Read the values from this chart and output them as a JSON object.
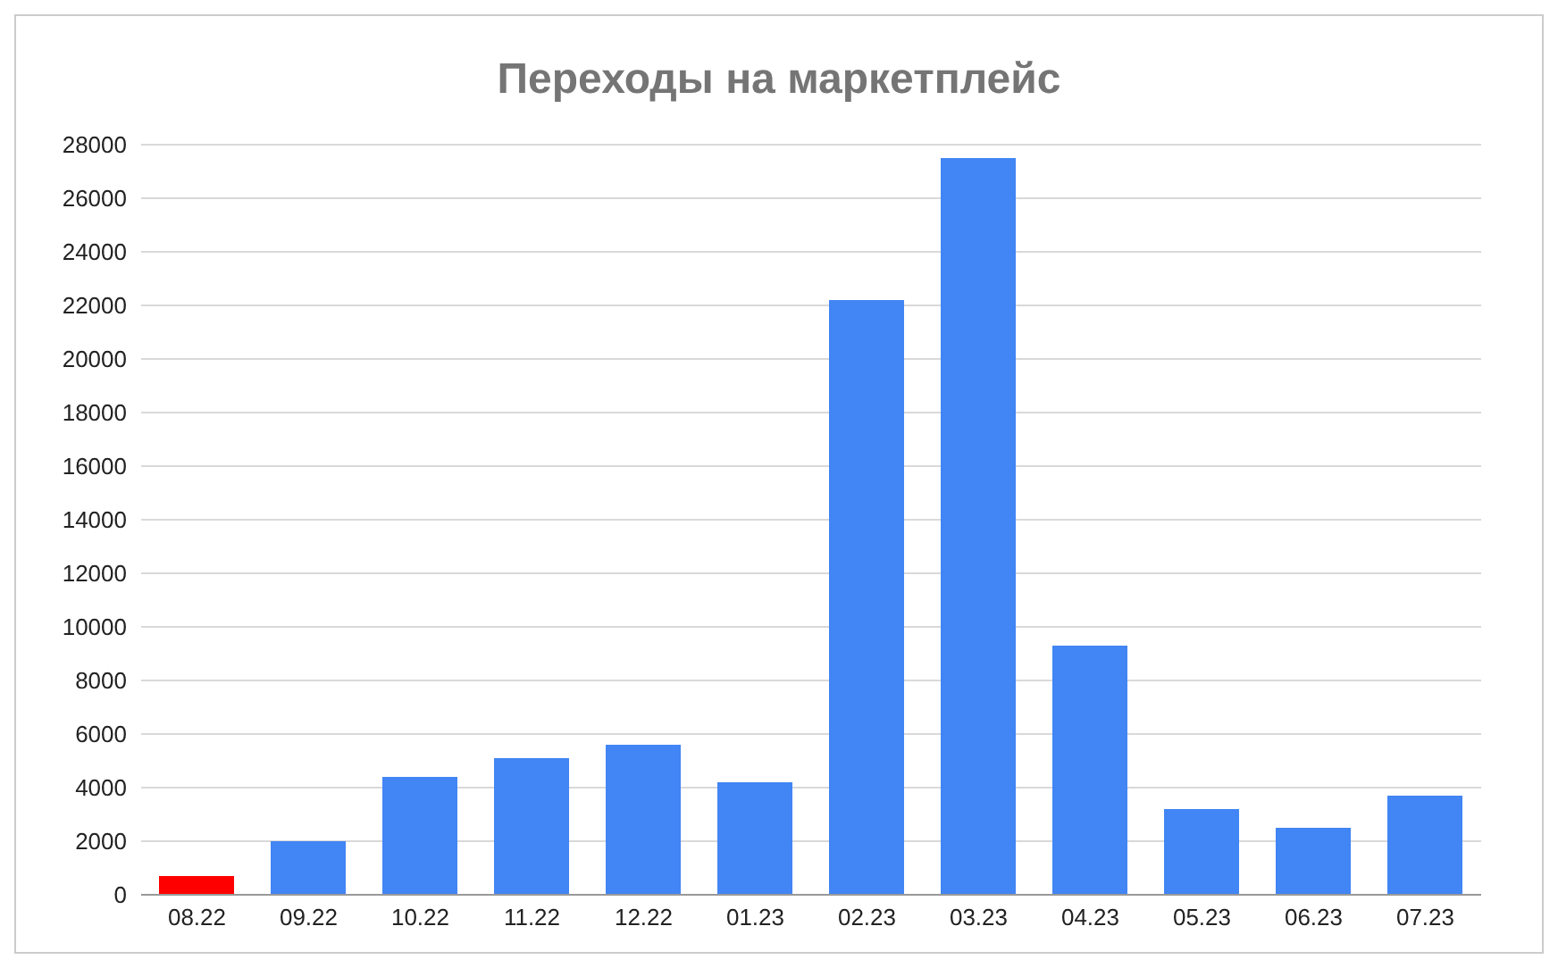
{
  "chart_data": {
    "type": "bar",
    "title": "Переходы на маркетплейс",
    "categories": [
      "08.22",
      "09.22",
      "10.22",
      "11.22",
      "12.22",
      "01.23",
      "02.23",
      "03.23",
      "04.23",
      "05.23",
      "06.23",
      "07.23"
    ],
    "values": [
      700,
      2000,
      4400,
      5100,
      5600,
      4200,
      22200,
      27500,
      9300,
      3200,
      2500,
      3700
    ],
    "colors": [
      "#ff0000",
      "#4285f4",
      "#4285f4",
      "#4285f4",
      "#4285f4",
      "#4285f4",
      "#4285f4",
      "#4285f4",
      "#4285f4",
      "#4285f4",
      "#4285f4",
      "#4285f4"
    ],
    "ylim": [
      0,
      28000
    ],
    "yticks": [
      0,
      2000,
      4000,
      6000,
      8000,
      10000,
      12000,
      14000,
      16000,
      18000,
      20000,
      22000,
      24000,
      26000,
      28000
    ],
    "grid": "y"
  }
}
